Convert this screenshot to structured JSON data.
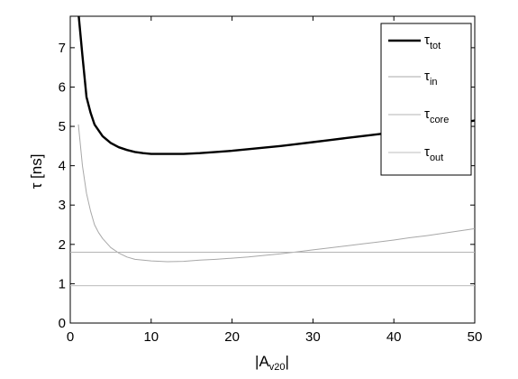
{
  "chart_data": {
    "type": "line",
    "xlim": [
      0,
      50
    ],
    "ylim": [
      0,
      7.8
    ],
    "xticks": [
      0,
      10,
      20,
      30,
      40,
      50
    ],
    "yticks": [
      0,
      1,
      2,
      3,
      4,
      5,
      6,
      7
    ],
    "xlabel": {
      "main": "|A",
      "sub": "v20",
      "tail": "|"
    },
    "ylabel": {
      "main": "τ",
      "rest": " [ns]"
    },
    "legend_position": "top-right",
    "grid": false,
    "series": [
      {
        "name": {
          "main": "τ",
          "sub": "tot"
        },
        "color": "#000000",
        "style": "thick",
        "x": [
          1,
          1.5,
          2,
          2.5,
          3,
          4,
          5,
          6,
          7,
          8,
          9,
          10,
          12,
          14,
          16,
          18,
          20,
          22,
          24,
          26,
          28,
          30,
          32,
          34,
          36,
          38,
          40,
          42,
          44,
          46,
          48,
          50
        ],
        "y": [
          7.9,
          6.8,
          5.75,
          5.35,
          5.05,
          4.75,
          4.58,
          4.47,
          4.4,
          4.35,
          4.32,
          4.3,
          4.3,
          4.3,
          4.32,
          4.35,
          4.38,
          4.42,
          4.46,
          4.5,
          4.55,
          4.6,
          4.65,
          4.7,
          4.75,
          4.8,
          4.85,
          4.9,
          4.96,
          5.02,
          5.08,
          5.15
        ]
      },
      {
        "name": {
          "main": "τ",
          "sub": "in"
        },
        "color": "#a8a8a8",
        "style": "thin",
        "x": [
          1,
          1.5,
          2,
          2.5,
          3,
          3.5,
          4,
          5,
          6,
          7,
          8,
          9,
          10,
          12,
          14,
          16,
          18,
          20,
          22,
          24,
          26,
          28,
          30,
          32,
          34,
          36,
          38,
          40,
          42,
          44,
          46,
          48,
          50
        ],
        "y": [
          5.05,
          4.0,
          3.3,
          2.85,
          2.5,
          2.3,
          2.15,
          1.92,
          1.78,
          1.68,
          1.62,
          1.6,
          1.58,
          1.56,
          1.57,
          1.6,
          1.62,
          1.65,
          1.68,
          1.72,
          1.76,
          1.81,
          1.86,
          1.91,
          1.96,
          2.01,
          2.06,
          2.11,
          2.17,
          2.22,
          2.28,
          2.34,
          2.4
        ]
      },
      {
        "name": {
          "main": "τ",
          "sub": "core"
        },
        "color": "#b4b4b4",
        "style": "thin",
        "x": [
          0,
          50
        ],
        "y": [
          1.8,
          1.8
        ]
      },
      {
        "name": {
          "main": "τ",
          "sub": "out"
        },
        "color": "#bcbcbc",
        "style": "thin",
        "x": [
          0,
          50
        ],
        "y": [
          0.95,
          0.95
        ]
      }
    ]
  }
}
